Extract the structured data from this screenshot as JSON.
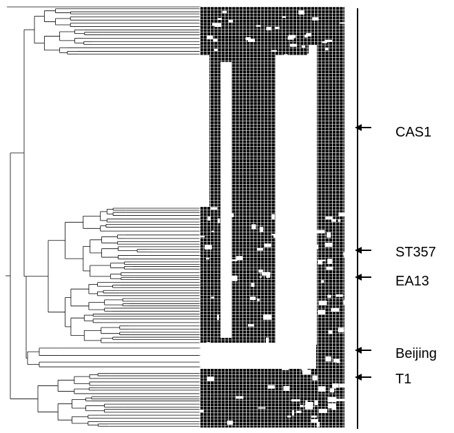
{
  "figure": {
    "description_free": true,
    "lineages": [
      {
        "id": "cas1",
        "label": "CAS1"
      },
      {
        "id": "st357",
        "label": "ST357"
      },
      {
        "id": "ea13",
        "label": "EA13"
      },
      {
        "id": "beijing",
        "label": "Beijing"
      },
      {
        "id": "t1",
        "label": "T1"
      }
    ],
    "colors": {
      "ink": "#000000",
      "background": "#ffffff"
    },
    "icon_names": [
      "arrow-left-icon"
    ]
  }
}
